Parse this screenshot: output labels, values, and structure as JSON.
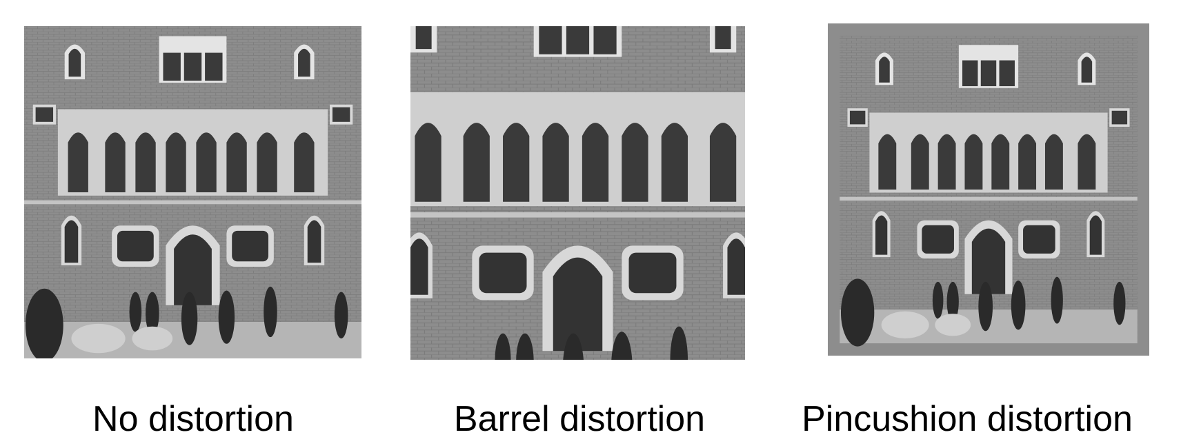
{
  "panels": [
    {
      "caption": "No distortion",
      "image_description": "building-facade-undistorted-icon"
    },
    {
      "caption": "Barrel distortion",
      "image_description": "building-facade-barrel-icon"
    },
    {
      "caption": "Pincushion distortion",
      "image_description": "building-facade-pincushion-icon"
    }
  ],
  "colors": {
    "background": "#ffffff",
    "caption_text": "#000000",
    "wall": "#8c8c8c",
    "trim": "#d6d6d6",
    "window": "#3a3a3a"
  }
}
